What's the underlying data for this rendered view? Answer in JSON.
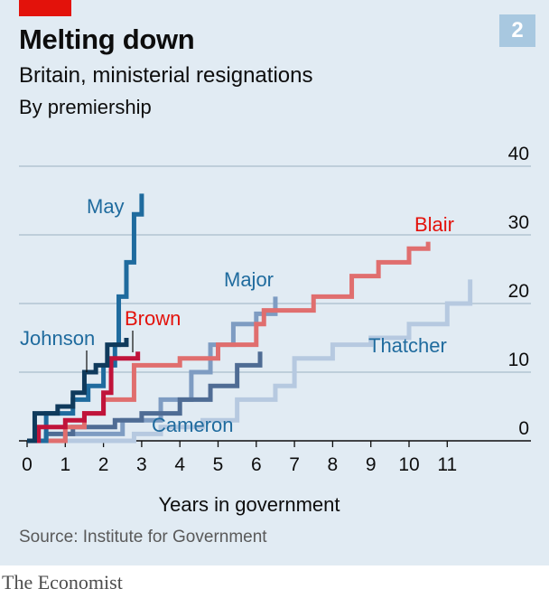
{
  "header": {
    "title": "Melting down",
    "subtitle": "Britain, ministerial resignations",
    "note": "By premiership",
    "chart_number": "2"
  },
  "footer": {
    "source": "Source: Institute for Government",
    "brand": "The Economist"
  },
  "chart_data": {
    "type": "line",
    "title": "Melting down",
    "subtitle": "Britain, ministerial resignations",
    "xlabel": "Years in government",
    "ylabel": "",
    "xlim": [
      0,
      12
    ],
    "ylim": [
      0,
      40
    ],
    "xticks": [
      "0",
      "1",
      "2",
      "3",
      "4",
      "5",
      "6",
      "7",
      "8",
      "9",
      "10",
      "11"
    ],
    "yticks": [
      "0",
      "10",
      "20",
      "30",
      "40"
    ],
    "y_axis_side": "right",
    "grid": true,
    "series": [
      {
        "name": "Thatcher",
        "color": "#b6c9e0",
        "points": [
          [
            0,
            0
          ],
          [
            2.8,
            0
          ],
          [
            2.8,
            1
          ],
          [
            3.5,
            2
          ],
          [
            4.6,
            3
          ],
          [
            5.5,
            6
          ],
          [
            6.5,
            8
          ],
          [
            7.0,
            12
          ],
          [
            8.0,
            14
          ],
          [
            9.0,
            15
          ],
          [
            10.0,
            17
          ],
          [
            11.0,
            20
          ],
          [
            11.6,
            23.5
          ]
        ]
      },
      {
        "name": "Major",
        "color": "#7e9cc2",
        "points": [
          [
            0,
            0
          ],
          [
            1.0,
            1
          ],
          [
            2.5,
            3
          ],
          [
            3.5,
            6
          ],
          [
            4.3,
            10
          ],
          [
            4.8,
            14
          ],
          [
            5.4,
            17
          ],
          [
            6.0,
            18.5
          ],
          [
            6.5,
            21
          ]
        ]
      },
      {
        "name": "Blair",
        "color": "#e06e6e",
        "points": [
          [
            0,
            0
          ],
          [
            1.0,
            2
          ],
          [
            1.5,
            4
          ],
          [
            2.0,
            6
          ],
          [
            2.8,
            11
          ],
          [
            4.0,
            12
          ],
          [
            5.0,
            14
          ],
          [
            6.0,
            17
          ],
          [
            6.2,
            19
          ],
          [
            7.5,
            21
          ],
          [
            8.5,
            24
          ],
          [
            9.2,
            26
          ],
          [
            10.0,
            28
          ],
          [
            10.5,
            29
          ]
        ]
      },
      {
        "name": "Brown",
        "color": "#c0133a",
        "points": [
          [
            0,
            0
          ],
          [
            0.3,
            2
          ],
          [
            1.0,
            3
          ],
          [
            1.5,
            4
          ],
          [
            2.0,
            7
          ],
          [
            2.2,
            12
          ],
          [
            2.9,
            13
          ]
        ]
      },
      {
        "name": "Cameron",
        "color": "#4f6c94",
        "points": [
          [
            0,
            0
          ],
          [
            0.5,
            1
          ],
          [
            1.2,
            2
          ],
          [
            2.3,
            3
          ],
          [
            3.0,
            4
          ],
          [
            4.0,
            6
          ],
          [
            4.8,
            8
          ],
          [
            5.5,
            11
          ],
          [
            6.1,
            13
          ]
        ]
      },
      {
        "name": "May",
        "color": "#1f6b9e",
        "points": [
          [
            0,
            0
          ],
          [
            0.5,
            4
          ],
          [
            1.2,
            6
          ],
          [
            1.6,
            8
          ],
          [
            2.0,
            11
          ],
          [
            2.3,
            14
          ],
          [
            2.4,
            21
          ],
          [
            2.6,
            26
          ],
          [
            2.8,
            33
          ],
          [
            3.0,
            36
          ]
        ]
      },
      {
        "name": "Johnson",
        "color": "#0f3a5c",
        "points": [
          [
            0,
            0
          ],
          [
            0.2,
            4
          ],
          [
            0.8,
            5
          ],
          [
            1.2,
            7
          ],
          [
            1.5,
            10
          ],
          [
            1.8,
            11
          ],
          [
            2.1,
            14
          ],
          [
            2.6,
            15
          ]
        ]
      }
    ]
  }
}
